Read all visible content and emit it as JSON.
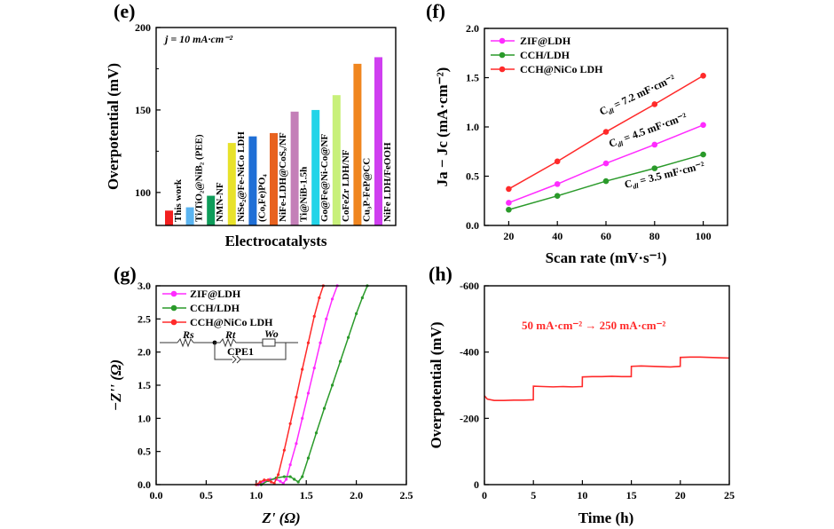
{
  "chart_data": [
    {
      "panel": "(e)",
      "type": "bar",
      "annotation": "j = 10 mA·cm⁻²",
      "xlabel": "Electrocatalysts",
      "ylabel": "Overpotential (mV)",
      "ylim": [
        80,
        200
      ],
      "yticks": [
        100,
        150,
        200
      ],
      "categories": [
        "This work",
        "Ti/TiO₂@NiB₂ (PEE)",
        "NMN-NF",
        "NiSe₂@Fe-NiCo LDH",
        "(Co,Fe)PO₄",
        "NiFe-LDH@CoSₓ/NF",
        "Ti@NiB-1.5h",
        "Go@Fe@Ni-Co@NF",
        "CoFeZr LDH/NF",
        "Cu₃P-FeP@CC",
        "NiFe LDH/FeOOH"
      ],
      "values": [
        89,
        91,
        98,
        130,
        134,
        136,
        149,
        150,
        159,
        178,
        182
      ],
      "colors": [
        "#f21f1f",
        "#5ab4f0",
        "#0e9c5a",
        "#e8e22a",
        "#1f6fd6",
        "#e8621f",
        "#c47fb8",
        "#22d4e8",
        "#c8f07a",
        "#f0861f",
        "#cf3ff0"
      ]
    },
    {
      "panel": "(f)",
      "type": "line",
      "xlabel": "Scan rate (mV·s⁻¹)",
      "ylabel": "Ja − Jc (mA·cm⁻²)",
      "xlim": [
        10,
        110
      ],
      "ylim": [
        0.0,
        2.0
      ],
      "xticks": [
        20,
        40,
        60,
        80,
        100
      ],
      "yticks": [
        0.0,
        0.5,
        1.0,
        1.5,
        2.0
      ],
      "legend_position": "top-left",
      "x": [
        20,
        40,
        60,
        80,
        100
      ],
      "series": [
        {
          "name": "ZIF@LDH",
          "color": "#ff2bff",
          "values": [
            0.23,
            0.42,
            0.63,
            0.82,
            1.02
          ],
          "label": "Cdl = 4.5 mF·cm⁻²"
        },
        {
          "name": "CCH/LDH",
          "color": "#2a9a2a",
          "values": [
            0.16,
            0.3,
            0.45,
            0.58,
            0.72
          ],
          "label": "Cdl = 3.5 mF·cm⁻²"
        },
        {
          "name": "CCH@NiCo LDH",
          "color": "#ff2a2a",
          "values": [
            0.37,
            0.65,
            0.95,
            1.23,
            1.52
          ],
          "label": "Cdl = 7.2 mF·cm⁻²"
        }
      ]
    },
    {
      "panel": "(g)",
      "type": "line",
      "xlabel": "Z' (Ω)",
      "ylabel": "−Z'' (Ω)",
      "xlim": [
        0.0,
        2.5
      ],
      "ylim": [
        0.0,
        3.0
      ],
      "xticks": [
        0.0,
        0.5,
        1.0,
        1.5,
        2.0,
        2.5
      ],
      "yticks": [
        0.0,
        0.5,
        1.0,
        1.5,
        2.0,
        2.5,
        3.0
      ],
      "legend_position": "top-left",
      "circuit_labels": [
        "Rs",
        "Rt",
        "Wo",
        "CPE1"
      ],
      "series": [
        {
          "name": "ZIF@LDH",
          "color": "#ff2bff",
          "x": [
            1.02,
            1.08,
            1.14,
            1.2,
            1.24,
            1.27,
            1.3,
            1.34,
            1.4,
            1.46,
            1.52,
            1.58,
            1.64,
            1.7,
            1.76,
            1.81
          ],
          "y": [
            0.0,
            0.05,
            0.08,
            0.08,
            0.05,
            0.02,
            0.08,
            0.3,
            0.62,
            1.0,
            1.38,
            1.76,
            2.14,
            2.5,
            2.8,
            3.0
          ]
        },
        {
          "name": "CCH/LDH",
          "color": "#2a9a2a",
          "x": [
            1.05,
            1.12,
            1.2,
            1.28,
            1.34,
            1.38,
            1.42,
            1.46,
            1.52,
            1.6,
            1.68,
            1.76,
            1.84,
            1.92,
            2.0,
            2.06,
            2.11
          ],
          "y": [
            0.0,
            0.06,
            0.1,
            0.12,
            0.12,
            0.08,
            0.04,
            0.12,
            0.4,
            0.78,
            1.15,
            1.5,
            1.86,
            2.22,
            2.58,
            2.82,
            3.0
          ]
        },
        {
          "name": "CCH@NiCo LDH",
          "color": "#ff2a2a",
          "x": [
            1.0,
            1.04,
            1.08,
            1.12,
            1.15,
            1.18,
            1.22,
            1.28,
            1.34,
            1.4,
            1.46,
            1.52,
            1.58,
            1.63,
            1.67
          ],
          "y": [
            0.0,
            0.04,
            0.07,
            0.07,
            0.04,
            0.02,
            0.15,
            0.52,
            0.92,
            1.32,
            1.74,
            2.14,
            2.54,
            2.82,
            3.0
          ]
        }
      ]
    },
    {
      "panel": "(h)",
      "type": "line",
      "xlabel": "Time (h)",
      "ylabel": "Overpotential (mV)",
      "annotation": "50 mA·cm⁻² → 250 mA·cm⁻²",
      "xlim": [
        0,
        25
      ],
      "ylim": [
        0,
        -600
      ],
      "xticks": [
        0,
        5,
        10,
        15,
        20,
        25
      ],
      "yticks": [
        0,
        -200,
        -400,
        -600
      ],
      "series": [
        {
          "name": "",
          "color": "#ff2a2a",
          "x": [
            0.0,
            0.3,
            1.0,
            2.0,
            3.0,
            4.0,
            4.99,
            5.0,
            6.0,
            7.0,
            8.0,
            9.0,
            9.99,
            10.0,
            11.0,
            12.0,
            13.0,
            14.0,
            14.99,
            15.0,
            16.0,
            17.0,
            18.0,
            19.0,
            19.99,
            20.0,
            21.0,
            22.0,
            23.0,
            24.0,
            25.0
          ],
          "y": [
            -268,
            -258,
            -254,
            -254,
            -255,
            -255,
            -256,
            -297,
            -296,
            -295,
            -296,
            -295,
            -296,
            -325,
            -326,
            -326,
            -327,
            -326,
            -326,
            -357,
            -358,
            -357,
            -356,
            -355,
            -357,
            -384,
            -385,
            -385,
            -384,
            -383,
            -382
          ]
        }
      ]
    }
  ]
}
